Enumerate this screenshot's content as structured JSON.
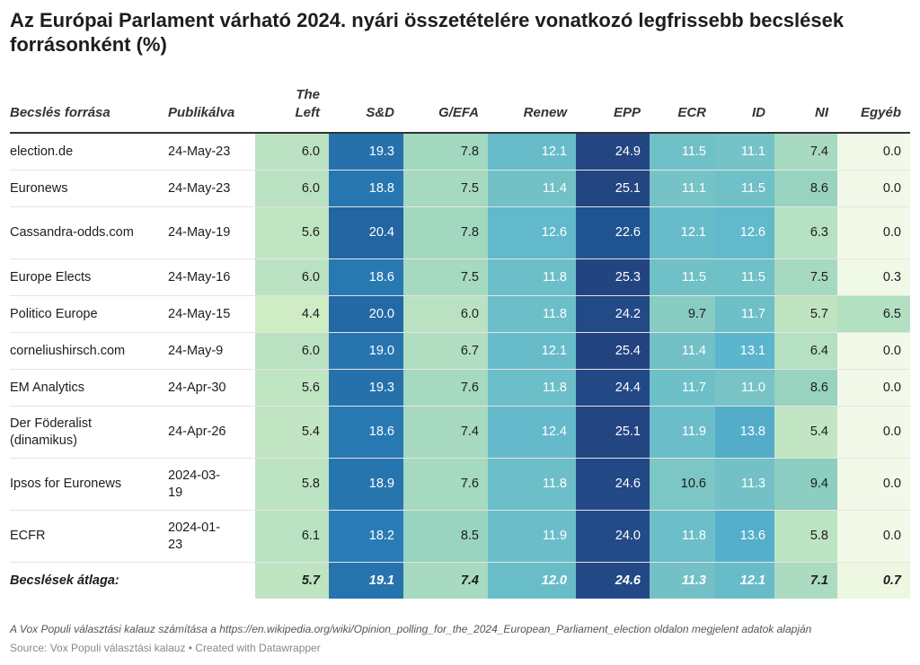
{
  "title": "Az Európai Parlament várható 2024. nyári összetételére vonatkozó legfrissebb becslések forrásonként (%)",
  "columns": {
    "source": "Becslés forrása",
    "published": "Publikálva",
    "parties": [
      "The Left",
      "S&D",
      "G/EFA",
      "Renew",
      "EPP",
      "ECR",
      "ID",
      "NI",
      "Egyéb"
    ]
  },
  "chart_data": {
    "type": "table",
    "title": "Az Európai Parlament várható 2024. nyári összetételére vonatkozó legfrissebb becslések forrásonként (%)",
    "color_scale": [
      "#f2f9e8",
      "#d1ecc4",
      "#96d3bf",
      "#5cb6cc",
      "#2c85bd",
      "#1f5897",
      "#24407c"
    ],
    "color_domain": [
      0,
      26
    ],
    "rows": [
      {
        "source": "election.de",
        "published": "24-May-23",
        "values": [
          6.0,
          19.3,
          7.8,
          12.1,
          24.9,
          11.5,
          11.1,
          7.4,
          0.0
        ]
      },
      {
        "source": "Euronews",
        "published": "24-May-23",
        "values": [
          6.0,
          18.8,
          7.5,
          11.4,
          25.1,
          11.1,
          11.5,
          8.6,
          0.0
        ]
      },
      {
        "source": "Cassandra-odds.com",
        "published": "24-May-19",
        "values": [
          5.6,
          20.4,
          7.8,
          12.6,
          22.6,
          12.1,
          12.6,
          6.3,
          0.0
        ]
      },
      {
        "source": "Europe Elects",
        "published": "24-May-16",
        "values": [
          6.0,
          18.6,
          7.5,
          11.8,
          25.3,
          11.5,
          11.5,
          7.5,
          0.3
        ]
      },
      {
        "source": "Politico Europe",
        "published": "24-May-15",
        "values": [
          4.4,
          20.0,
          6.0,
          11.8,
          24.2,
          9.7,
          11.7,
          5.7,
          6.5
        ]
      },
      {
        "source": "corneliushirsch.com",
        "published": "24-May-9",
        "values": [
          6.0,
          19.0,
          6.7,
          12.1,
          25.4,
          11.4,
          13.1,
          6.4,
          0.0
        ]
      },
      {
        "source": "EM Analytics",
        "published": "24-Apr-30",
        "values": [
          5.6,
          19.3,
          7.6,
          11.8,
          24.4,
          11.7,
          11.0,
          8.6,
          0.0
        ]
      },
      {
        "source": "Der Föderalist (dinamikus)",
        "published": "24-Apr-26",
        "values": [
          5.4,
          18.6,
          7.4,
          12.4,
          25.1,
          11.9,
          13.8,
          5.4,
          0.0
        ]
      },
      {
        "source": "Ipsos for Euronews",
        "published": "2024-03-19",
        "values": [
          5.8,
          18.9,
          7.6,
          11.8,
          24.6,
          10.6,
          11.3,
          9.4,
          0.0
        ]
      },
      {
        "source": "ECFR",
        "published": "2024-01-23",
        "values": [
          6.1,
          18.2,
          8.5,
          11.9,
          24.0,
          11.8,
          13.6,
          5.8,
          0.0
        ]
      }
    ],
    "average": {
      "label": "Becslések átlaga:",
      "values": [
        5.7,
        19.1,
        7.4,
        12.0,
        24.6,
        11.3,
        12.1,
        7.1,
        0.7
      ]
    }
  },
  "notes": "A Vox Populi választási kalauz számítása a https://en.wikipedia.org/wiki/Opinion_polling_for_the_2024_European_Parliament_election oldalon megjelent adatok alapján",
  "source": "Source: Vox Populi választási kalauz • Created with Datawrapper"
}
